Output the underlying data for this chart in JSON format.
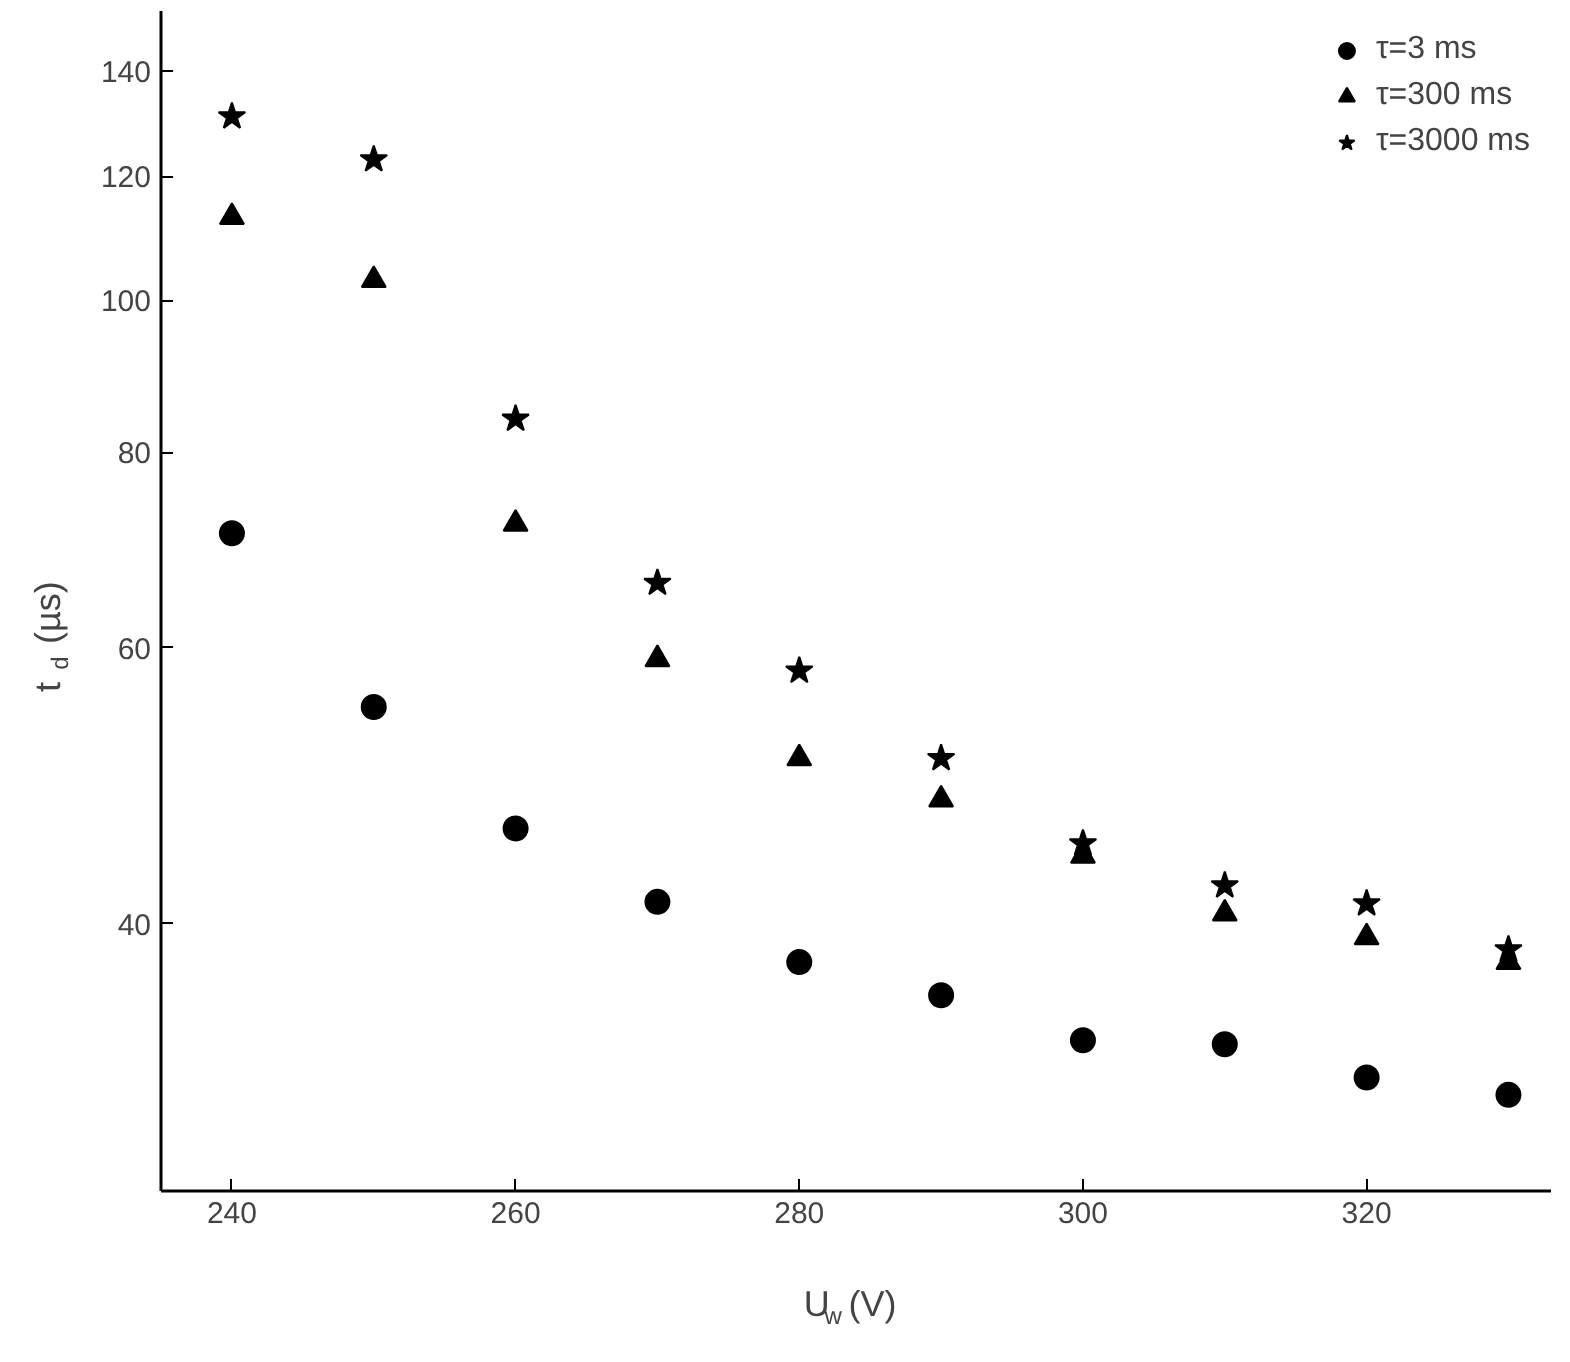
{
  "chart_data": {
    "type": "scatter",
    "xlabel": "U$_{w}$ (V)",
    "ylabel": "t$_{d}$ (µs)",
    "log": "y",
    "x": [
      240,
      250,
      260,
      270,
      280,
      290,
      300,
      310,
      320,
      330
    ],
    "xlim": [
      235,
      333
    ],
    "xticks": [
      240,
      260,
      280,
      300,
      320
    ],
    "ylim": [
      27,
      153
    ],
    "yticks": [
      40,
      60,
      80,
      100,
      120,
      140
    ],
    "legend": "top right",
    "grid": false,
    "series": [
      {
        "name": "τ=3 ms",
        "color": "#000000",
        "marker": "circle",
        "values": [
          71,
          55,
          46,
          41.3,
          37.8,
          36,
          33.7,
          33.5,
          31.9,
          31.1
        ]
      },
      {
        "name": "τ=300 ms",
        "color": "#000000",
        "marker": "triangle",
        "values": [
          113,
          103,
          72,
          59,
          51,
          48,
          44.2,
          40.6,
          39.2,
          37.8
        ]
      },
      {
        "name": "τ=3000 ms",
        "color": "#000000",
        "marker": "star",
        "values": [
          131,
          123,
          84,
          66,
          58,
          51,
          45,
          42.3,
          41.2,
          38.5
        ]
      }
    ]
  }
}
